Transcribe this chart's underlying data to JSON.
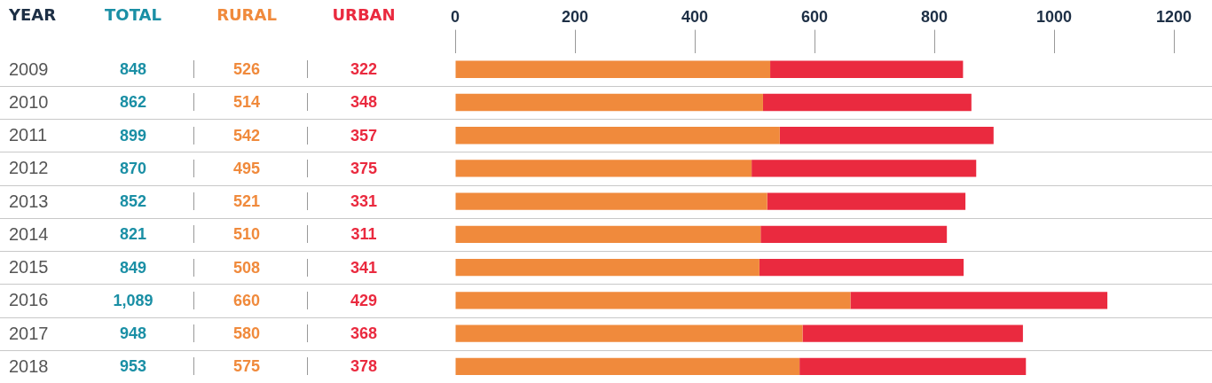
{
  "chart_data": {
    "type": "bar",
    "orientation": "horizontal",
    "stacked": true,
    "ylabel": "YEAR",
    "annotations": [
      "TOTAL",
      "848",
      "862",
      "899",
      "870",
      "852",
      "821",
      "849",
      "1,089",
      "948",
      "953"
    ],
    "categories": [
      "2009",
      "2010",
      "2011",
      "2012",
      "2013",
      "2014",
      "2015",
      "2016",
      "2017",
      "2018"
    ],
    "series": [
      {
        "name": "RURAL",
        "color": "#f08a3c",
        "values": [
          526,
          514,
          542,
          495,
          521,
          510,
          508,
          660,
          580,
          575
        ]
      },
      {
        "name": "URBAN",
        "color": "#ea2a3f",
        "values": [
          322,
          348,
          357,
          375,
          331,
          311,
          341,
          429,
          368,
          378
        ]
      }
    ],
    "data_labels": true,
    "x2lim": [
      0,
      1200
    ],
    "x2ticks": [
      0,
      200,
      400,
      600,
      800,
      1000,
      1200
    ],
    "grid": "y",
    "legend": false
  }
}
